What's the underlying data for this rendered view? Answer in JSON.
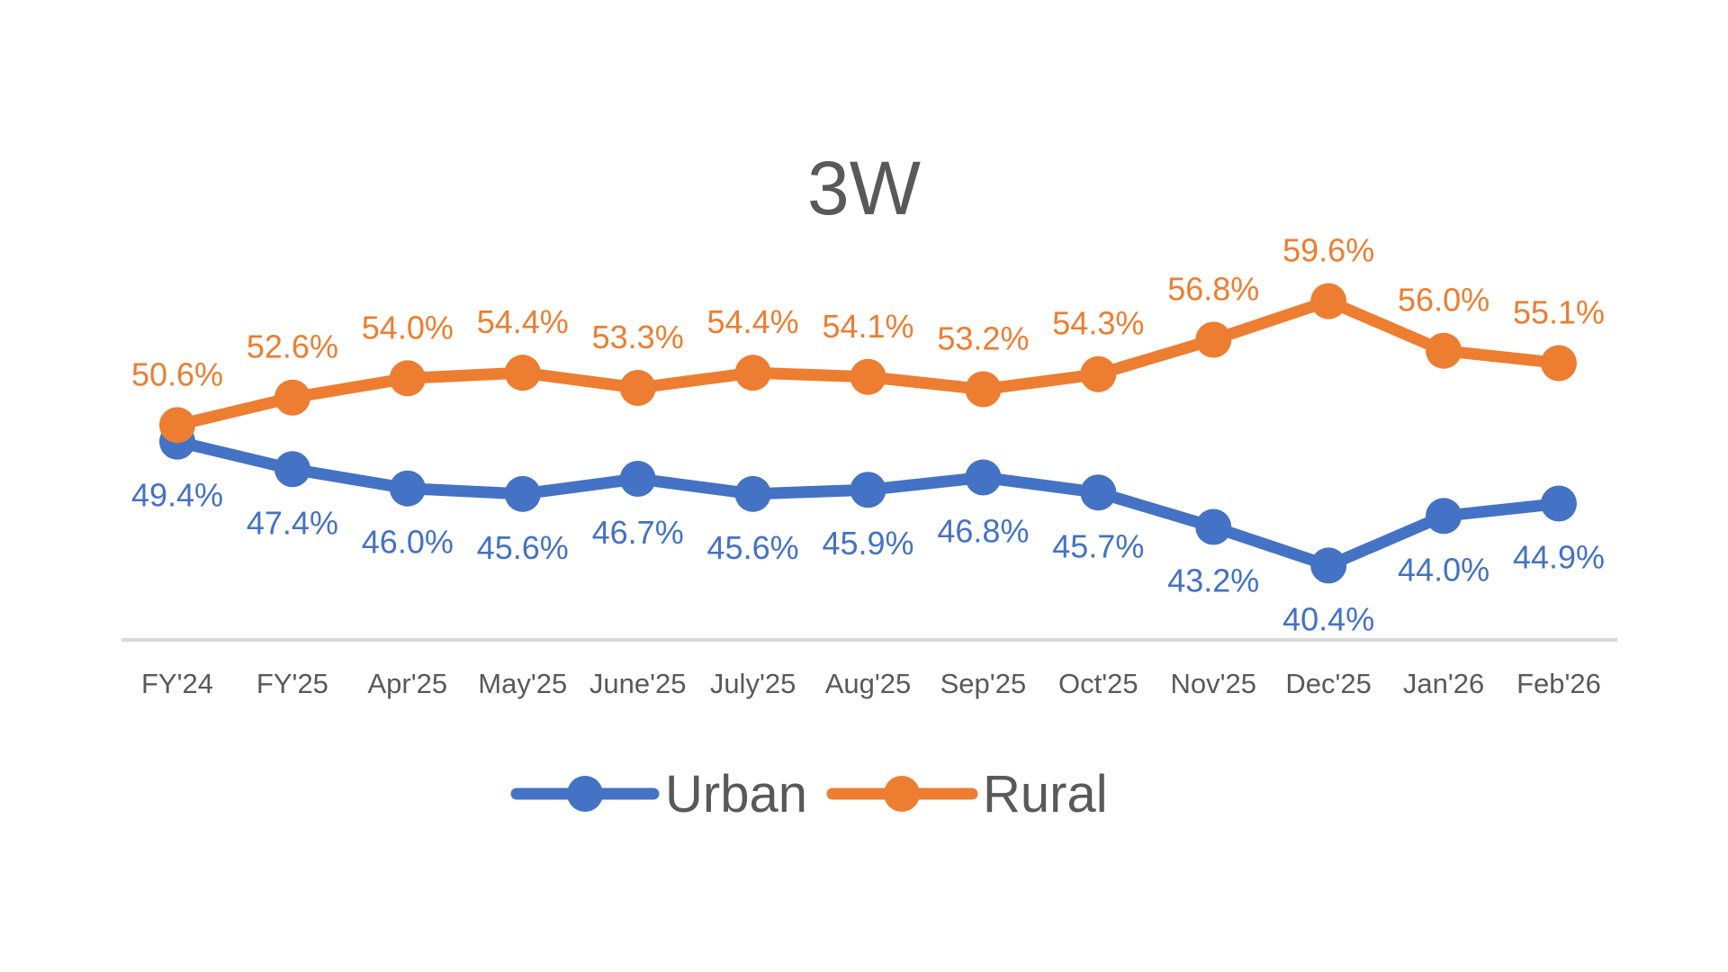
{
  "chart_data": {
    "type": "line",
    "title": "3W",
    "xlabel": "",
    "ylabel": "",
    "ylim": [
      35,
      65
    ],
    "grid": false,
    "legend_position": "bottom",
    "categories": [
      "FY'24",
      "FY'25",
      "Apr'25",
      "May'25",
      "June'25",
      "July'25",
      "Aug'25",
      "Sep'25",
      "Oct'25",
      "Nov'25",
      "Dec'25",
      "Jan'26",
      "Feb'26"
    ],
    "series": [
      {
        "name": "Urban",
        "color": "#4472C4",
        "values": [
          49.4,
          47.4,
          46.0,
          45.6,
          46.7,
          45.6,
          45.9,
          46.8,
          45.7,
          43.2,
          40.4,
          44.0,
          44.9
        ],
        "labels": [
          "49.4%",
          "47.4%",
          "46.0%",
          "45.6%",
          "46.7%",
          "45.6%",
          "45.9%",
          "46.8%",
          "45.7%",
          "43.2%",
          "40.4%",
          "44.0%",
          "44.9%"
        ],
        "label_position": "below"
      },
      {
        "name": "Rural",
        "color": "#ED7D31",
        "values": [
          50.6,
          52.6,
          54.0,
          54.4,
          53.3,
          54.4,
          54.1,
          53.2,
          54.3,
          56.8,
          59.6,
          56.0,
          55.1
        ],
        "labels": [
          "50.6%",
          "52.6%",
          "54.0%",
          "54.4%",
          "53.3%",
          "54.4%",
          "54.1%",
          "53.2%",
          "54.3%",
          "56.8%",
          "59.6%",
          "56.0%",
          "55.1%"
        ],
        "label_position": "above"
      }
    ],
    "axis_color": "#D9D9D9",
    "text_color": "#595959"
  }
}
